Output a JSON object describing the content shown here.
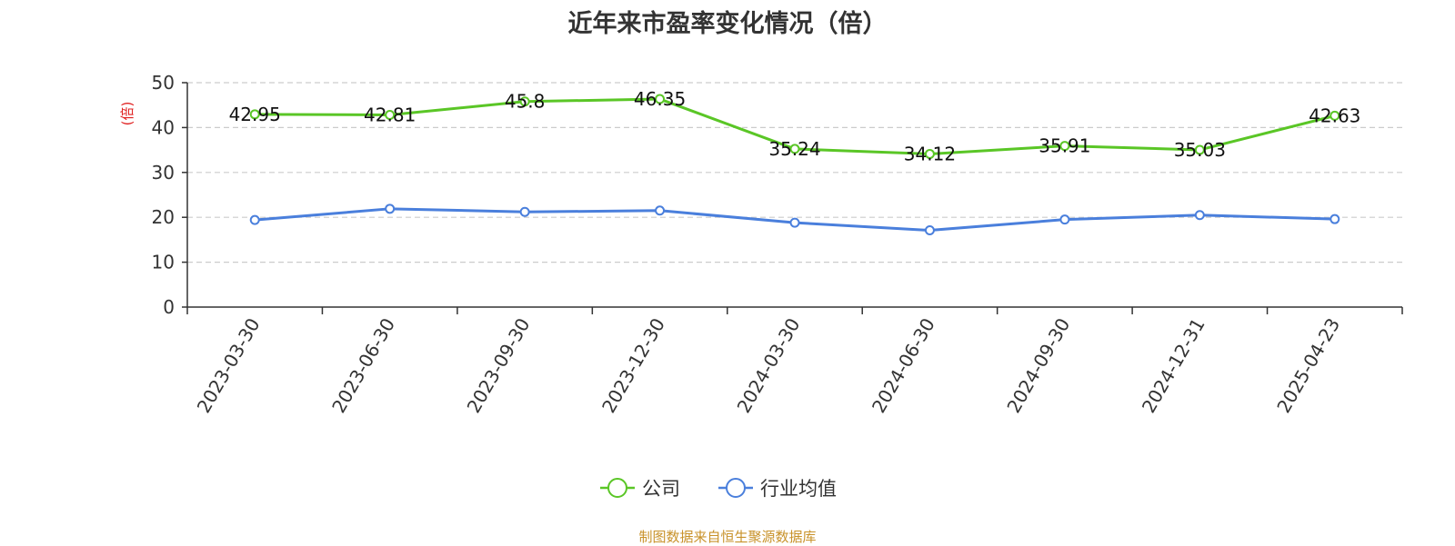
{
  "chart_data": {
    "type": "line",
    "title": "近年来市盈率变化情况（倍）",
    "ylabel": "(倍)",
    "xlabel": "",
    "ylim": [
      0,
      50
    ],
    "yticks": [
      0,
      10,
      20,
      30,
      40,
      50
    ],
    "grid": true,
    "legend_position": "bottom-center",
    "categories": [
      "2023-03-30",
      "2023-06-30",
      "2023-09-30",
      "2023-12-30",
      "2024-03-30",
      "2024-06-30",
      "2024-09-30",
      "2024-12-31",
      "2025-04-23"
    ],
    "series": [
      {
        "name": "公司",
        "color": "#5ac626",
        "values": [
          42.95,
          42.81,
          45.8,
          46.35,
          35.24,
          34.12,
          35.91,
          35.03,
          42.63
        ],
        "data_labels": [
          "42.95",
          "42.81",
          "45.8",
          "46.35",
          "35.24",
          "34.12",
          "35.91",
          "35.03",
          "42.63"
        ]
      },
      {
        "name": "行业均值",
        "color": "#4a7fdc",
        "values": [
          19.4,
          21.9,
          21.2,
          21.5,
          18.8,
          17.1,
          19.5,
          20.5,
          19.6
        ]
      }
    ],
    "ylabel_color": "#e02020"
  },
  "source_note": "制图数据来自恒生聚源数据库"
}
